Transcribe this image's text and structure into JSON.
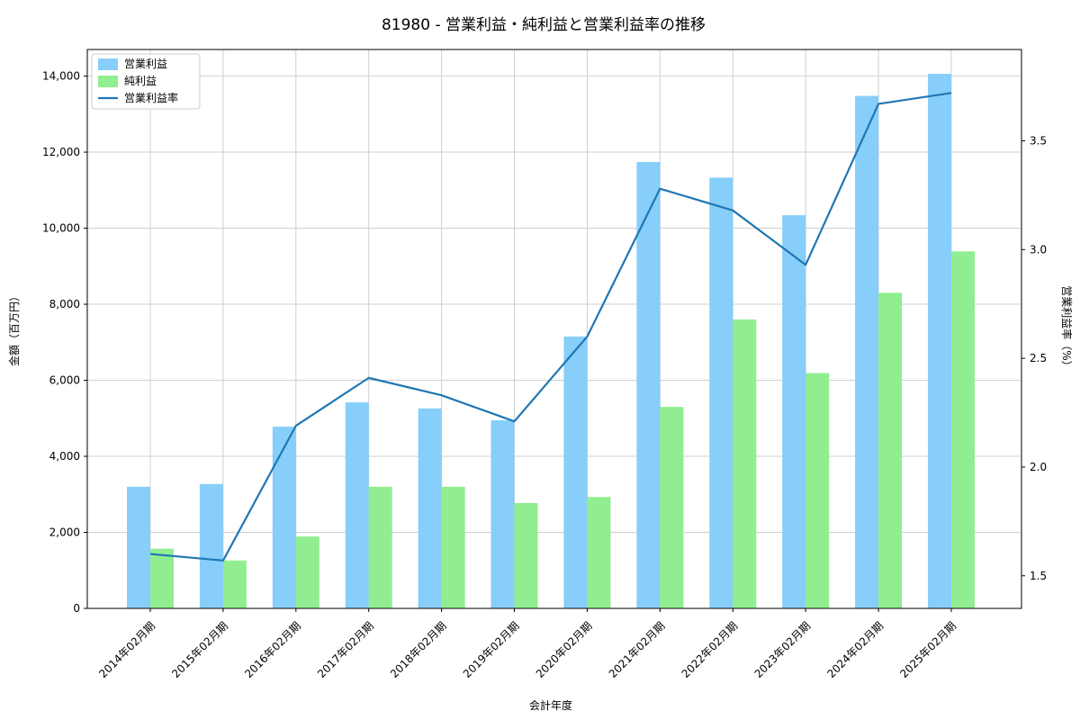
{
  "chart_data": {
    "type": "bar",
    "title": "81980 - 営業利益・純利益と営業利益率の推移",
    "xlabel": "会計年度",
    "ylabel_left": "金額（百万円）",
    "ylabel_right": "営業利益率（%）",
    "categories": [
      "2014年02月期",
      "2015年02月期",
      "2016年02月期",
      "2017年02月期",
      "2018年02月期",
      "2019年02月期",
      "2020年02月期",
      "2021年02月期",
      "2022年02月期",
      "2023年02月期",
      "2024年02月期",
      "2025年02月期"
    ],
    "series": [
      {
        "name": "営業利益",
        "type": "bar",
        "axis": "left",
        "color": "#87CEFA",
        "values": [
          3200,
          3270,
          4780,
          5420,
          5260,
          4950,
          7150,
          11740,
          11330,
          10340,
          13480,
          14060
        ]
      },
      {
        "name": "純利益",
        "type": "bar",
        "axis": "left",
        "color": "#90EE90",
        "values": [
          1570,
          1260,
          1890,
          3200,
          3200,
          2770,
          2930,
          5300,
          7600,
          6190,
          8300,
          9390
        ]
      },
      {
        "name": "営業利益率",
        "type": "line",
        "axis": "right",
        "color": "#1f77b4",
        "values": [
          1.6,
          1.57,
          2.19,
          2.41,
          2.33,
          2.21,
          2.6,
          3.28,
          3.18,
          2.93,
          3.67,
          3.72
        ]
      }
    ],
    "left_axis": {
      "ticks": [
        0,
        2000,
        4000,
        6000,
        8000,
        10000,
        12000,
        14000
      ],
      "lim": [
        0,
        14700
      ]
    },
    "right_axis": {
      "ticks": [
        1.5,
        2.0,
        2.5,
        3.0,
        3.5
      ],
      "lim": [
        1.35,
        3.92
      ]
    },
    "legend_position": "upper left",
    "grid": true,
    "colors": {
      "grid": "#cfcfcf",
      "spine": "#000000",
      "legend_border": "#cccccc",
      "background": "#ffffff"
    }
  }
}
